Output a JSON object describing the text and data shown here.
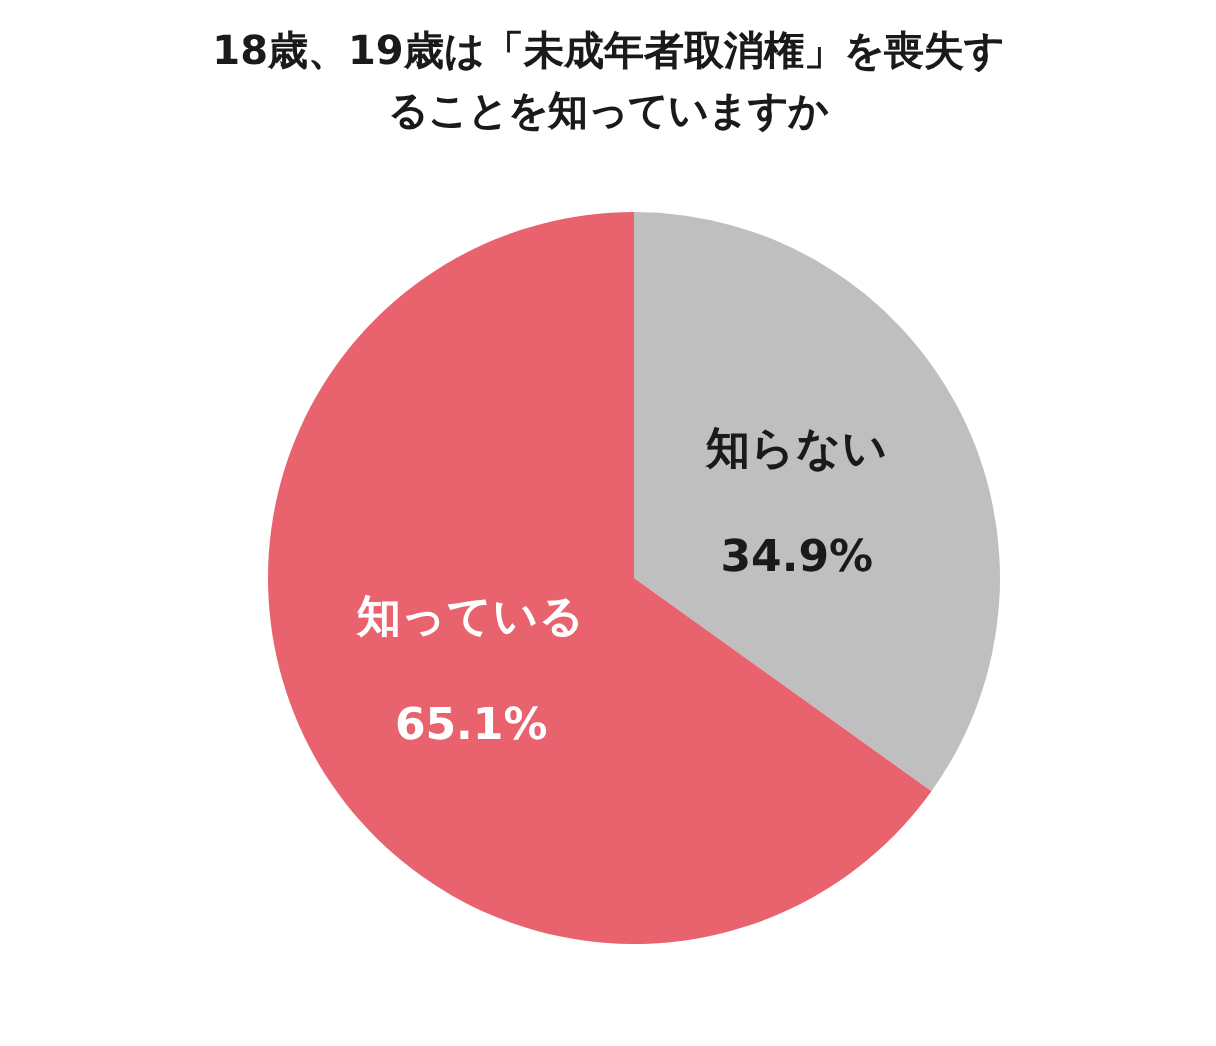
{
  "chart_data": {
    "type": "pie",
    "title": "18歳、19歳は「未成年者取消権」を喪失することを知っていますか",
    "categories": [
      "知らない",
      "知っている"
    ],
    "values": [
      34.9,
      65.1
    ],
    "colors": [
      "#bfbfbf",
      "#e8636d"
    ],
    "value_labels": [
      "34.9%",
      "65.1%"
    ],
    "legend": false
  }
}
